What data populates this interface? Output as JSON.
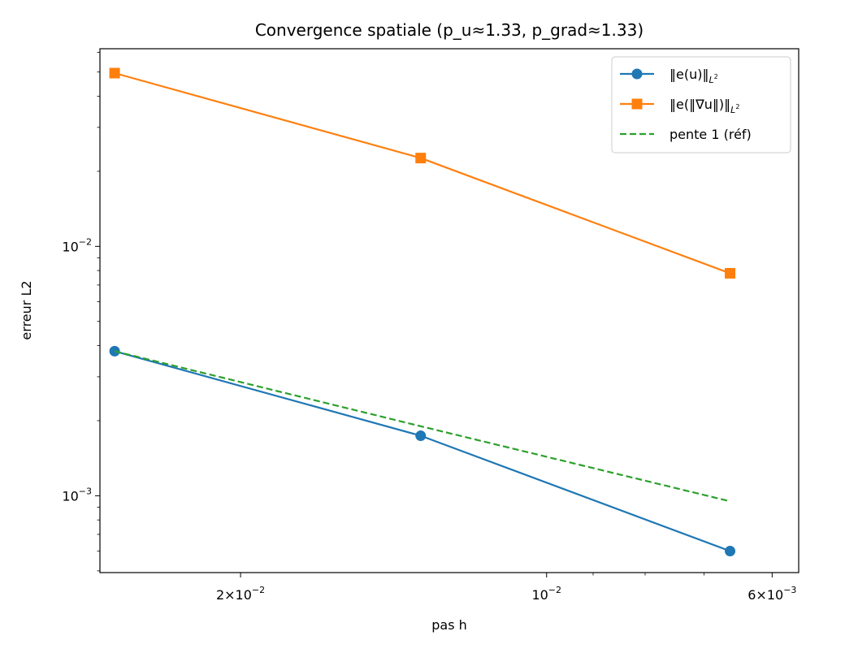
{
  "chart_data": {
    "type": "line",
    "title": "Convergence spatiale (p_u≈1.33, p_grad≈1.33)",
    "xlabel": "pas h",
    "ylabel": "erreur L2",
    "xscale": "log",
    "yscale": "log",
    "x_inverted": true,
    "xlim": [
      0.0275,
      0.00565
    ],
    "ylim": [
      0.000492,
      0.062
    ],
    "grid": false,
    "legend_position": "top-right",
    "x_ticks": [
      {
        "value": 0.02,
        "mantissa": "2×10",
        "exp": "−2"
      },
      {
        "value": 0.01,
        "mantissa": "10",
        "exp": "−2"
      },
      {
        "value": 0.006,
        "mantissa": "6×10",
        "exp": "−3"
      }
    ],
    "x_minor_ticks": [
      0.03,
      0.009,
      0.008,
      0.007
    ],
    "y_ticks": [
      {
        "value": 0.01,
        "mantissa": "10",
        "exp": "−2"
      },
      {
        "value": 0.001,
        "mantissa": "10",
        "exp": "−3"
      }
    ],
    "y_minor_ticks": [
      0.0005,
      0.0006,
      0.0007,
      0.0008,
      0.0009,
      0.002,
      0.003,
      0.004,
      0.005,
      0.006,
      0.007,
      0.008,
      0.009,
      0.02,
      0.03,
      0.04,
      0.05,
      0.06
    ],
    "series": [
      {
        "name": "‖e(u)‖_L²",
        "legend_main": "‖e(u)‖",
        "legend_sub": "L",
        "legend_sup": "2",
        "color": "#1f77b4",
        "marker": "circle",
        "linestyle": "solid",
        "x": [
          0.0266,
          0.0133,
          0.0066
        ],
        "y": [
          0.0038,
          0.00174,
          0.0006
        ]
      },
      {
        "name": "‖e(‖∇u‖)‖_L²",
        "legend_main": "‖e(‖∇u‖)‖",
        "legend_sub": "L",
        "legend_sup": "2",
        "color": "#ff7f0e",
        "marker": "square",
        "linestyle": "solid",
        "x": [
          0.0266,
          0.0133,
          0.0066
        ],
        "y": [
          0.0495,
          0.0226,
          0.0078
        ]
      },
      {
        "name": "pente 1 (réf)",
        "legend_main": "pente 1 (réf)",
        "color": "#2ca02c",
        "marker": "none",
        "linestyle": "dashed",
        "x": [
          0.0266,
          0.0133,
          0.0066
        ],
        "y": [
          0.0038,
          0.0019,
          0.00095
        ]
      }
    ]
  }
}
